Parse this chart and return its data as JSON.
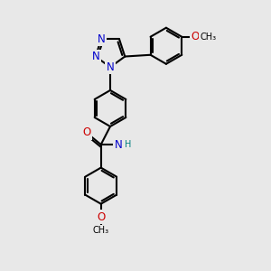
{
  "bg_color": "#e8e8e8",
  "atom_colors": {
    "C": "#000000",
    "N": "#0000cc",
    "O": "#cc0000",
    "H": "#008080"
  },
  "bond_color": "#000000",
  "bond_width": 1.5,
  "font_size_atom": 8.5,
  "fig_width": 3.0,
  "fig_height": 3.0,
  "dpi": 100
}
